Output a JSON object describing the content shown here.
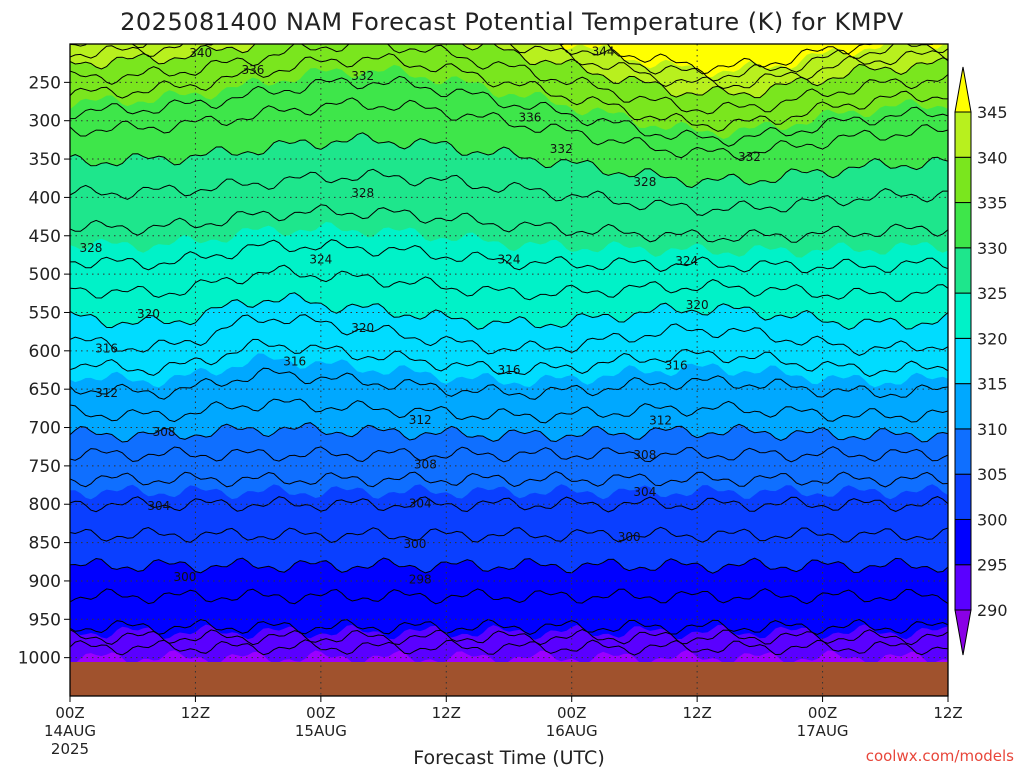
{
  "chart_data": {
    "type": "heatmap",
    "title": "2025081400 NAM Forecast Potential Temperature (K) for KMPV",
    "xlabel": "Forecast Time (UTC)",
    "credit": "coolwx.com/models",
    "x_ticks": [
      {
        "label": "00Z",
        "sub": "14AUG",
        "sub2": "2025",
        "hour": 0
      },
      {
        "label": "12Z",
        "sub": "",
        "sub2": "",
        "hour": 12
      },
      {
        "label": "00Z",
        "sub": "15AUG",
        "sub2": "",
        "hour": 24
      },
      {
        "label": "12Z",
        "sub": "",
        "sub2": "",
        "hour": 36
      },
      {
        "label": "00Z",
        "sub": "16AUG",
        "sub2": "",
        "hour": 48
      },
      {
        "label": "12Z",
        "sub": "",
        "sub2": "",
        "hour": 60
      },
      {
        "label": "00Z",
        "sub": "17AUG",
        "sub2": "",
        "hour": 72
      },
      {
        "label": "12Z",
        "sub": "",
        "sub2": "",
        "hour": 84
      }
    ],
    "xlim": [
      0,
      84
    ],
    "y_ticks": [
      "250",
      "300",
      "350",
      "400",
      "450",
      "500",
      "550",
      "600",
      "650",
      "700",
      "750",
      "800",
      "850",
      "900",
      "950",
      "1000"
    ],
    "ylim_hpa": [
      200,
      1050
    ],
    "surface_hpa": 960,
    "colorbar": {
      "levels": [
        290,
        295,
        300,
        305,
        310,
        315,
        320,
        325,
        330,
        335,
        340,
        345
      ],
      "tick_labels": [
        "290",
        "295",
        "300",
        "305",
        "310",
        "315",
        "320",
        "325",
        "330",
        "335",
        "340",
        "345"
      ],
      "colors": [
        "#9b00ff",
        "#5a00ff",
        "#0000ff",
        "#0a3fff",
        "#0f6fff",
        "#00a8ff",
        "#00dcff",
        "#00f2c8",
        "#1ee68c",
        "#3ee64a",
        "#7ae61e",
        "#b8f01e",
        "#ffff00"
      ],
      "below_color": "#8a00e6",
      "above_color": "#ffff00"
    },
    "contour_labels": [
      {
        "text": "340",
        "hour": 12.5,
        "hpa": 212
      },
      {
        "text": "344",
        "hour": 51.0,
        "hpa": 210
      },
      {
        "text": "336",
        "hour": 17.5,
        "hpa": 234
      },
      {
        "text": "332",
        "hour": 28.0,
        "hpa": 242
      },
      {
        "text": "336",
        "hour": 44.0,
        "hpa": 296
      },
      {
        "text": "332",
        "hour": 47.0,
        "hpa": 337
      },
      {
        "text": "332",
        "hour": 65.0,
        "hpa": 347
      },
      {
        "text": "328",
        "hour": 55.0,
        "hpa": 380
      },
      {
        "text": "328",
        "hour": 28.0,
        "hpa": 394
      },
      {
        "text": "328",
        "hour": 2.0,
        "hpa": 466
      },
      {
        "text": "324",
        "hour": 24.0,
        "hpa": 481
      },
      {
        "text": "324",
        "hour": 42.0,
        "hpa": 481
      },
      {
        "text": "324",
        "hour": 59.0,
        "hpa": 483
      },
      {
        "text": "320",
        "hour": 7.5,
        "hpa": 552
      },
      {
        "text": "320",
        "hour": 28.0,
        "hpa": 570
      },
      {
        "text": "320",
        "hour": 60.0,
        "hpa": 540
      },
      {
        "text": "316",
        "hour": 3.5,
        "hpa": 597
      },
      {
        "text": "316",
        "hour": 21.5,
        "hpa": 614
      },
      {
        "text": "316",
        "hour": 42.0,
        "hpa": 625
      },
      {
        "text": "316",
        "hour": 58.0,
        "hpa": 619
      },
      {
        "text": "312",
        "hour": 3.5,
        "hpa": 655
      },
      {
        "text": "312",
        "hour": 33.5,
        "hpa": 690
      },
      {
        "text": "312",
        "hour": 56.5,
        "hpa": 691
      },
      {
        "text": "308",
        "hour": 9.0,
        "hpa": 706
      },
      {
        "text": "308",
        "hour": 34.0,
        "hpa": 748
      },
      {
        "text": "308",
        "hour": 55.0,
        "hpa": 736
      },
      {
        "text": "304",
        "hour": 8.5,
        "hpa": 802
      },
      {
        "text": "304",
        "hour": 33.5,
        "hpa": 799
      },
      {
        "text": "304",
        "hour": 55.0,
        "hpa": 784
      },
      {
        "text": "300",
        "hour": 11.0,
        "hpa": 895
      },
      {
        "text": "300",
        "hour": 33.0,
        "hpa": 852
      },
      {
        "text": "300",
        "hour": 53.5,
        "hpa": 843
      },
      {
        "text": "298",
        "hour": 33.5,
        "hpa": 898
      }
    ]
  }
}
